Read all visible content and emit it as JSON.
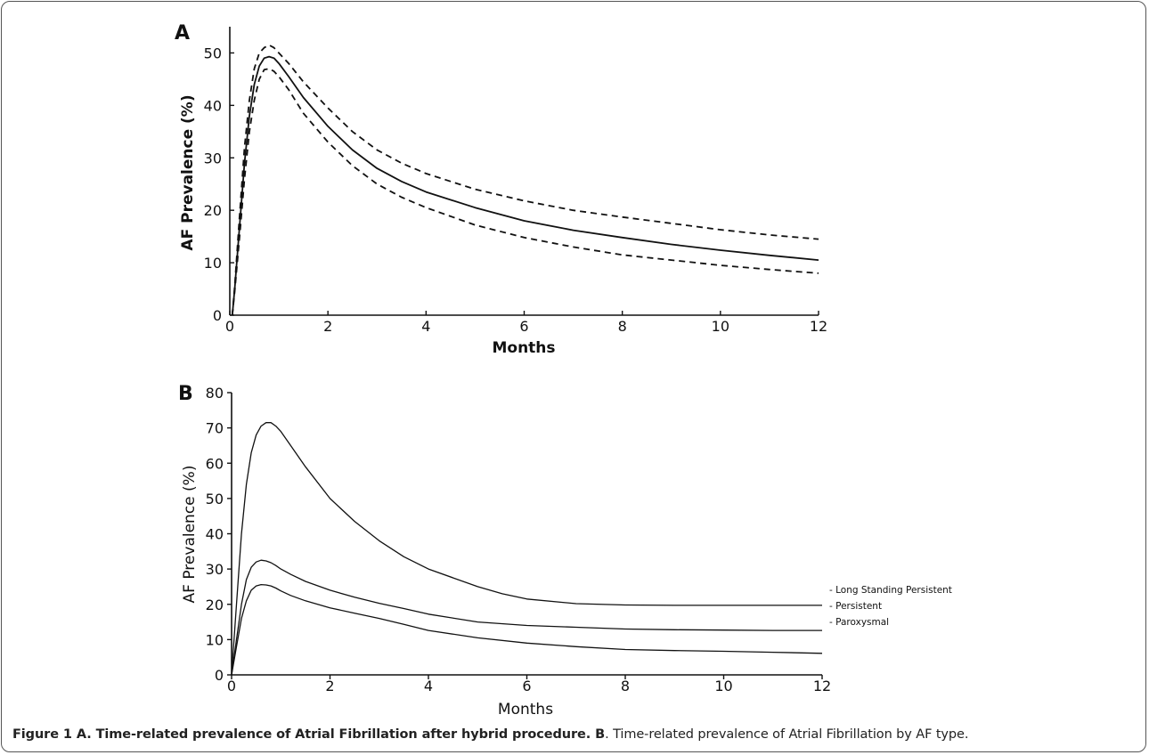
{
  "caption": {
    "part1": "Figure 1 A. Time-related prevalence of Atrial Fibrillation after hybrid procedure. B",
    "part2": ". Time-related prevalence of Atrial Fibrillation by AF type."
  },
  "chart_data": [
    {
      "type": "line",
      "panel_label": "A",
      "xlabel": "Months",
      "ylabel": "AF Prevalence (%)",
      "xlim": [
        0,
        12
      ],
      "ylim": [
        0,
        55
      ],
      "xticks": [
        0,
        2,
        4,
        6,
        8,
        10,
        12
      ],
      "yticks": [
        0,
        10,
        20,
        30,
        40,
        50
      ],
      "series": [
        {
          "style": "solid",
          "x": [
            0.05,
            0.1,
            0.2,
            0.3,
            0.4,
            0.5,
            0.6,
            0.7,
            0.8,
            0.9,
            1.0,
            1.2,
            1.5,
            2,
            2.5,
            3,
            3.5,
            4,
            5,
            6,
            7,
            8,
            9,
            10,
            11,
            12
          ],
          "y": [
            0,
            5,
            17,
            29,
            38,
            44,
            47.5,
            49,
            49.3,
            49,
            48,
            45.5,
            41.5,
            36,
            31.5,
            28,
            25.5,
            23.5,
            20.5,
            18,
            16.2,
            14.8,
            13.5,
            12.4,
            11.4,
            10.5
          ]
        },
        {
          "style": "dashed",
          "x": [
            0.05,
            0.1,
            0.2,
            0.3,
            0.4,
            0.5,
            0.6,
            0.7,
            0.8,
            0.9,
            1.0,
            1.2,
            1.5,
            2,
            2.5,
            3,
            3.5,
            4,
            5,
            6,
            7,
            8,
            9,
            10,
            11,
            12
          ],
          "y": [
            0,
            5.5,
            19,
            32,
            41,
            47,
            50,
            51,
            51.5,
            51,
            50,
            48,
            44.5,
            39.5,
            35,
            31.5,
            29,
            27,
            24,
            21.8,
            20,
            18.7,
            17.5,
            16.3,
            15.3,
            14.5
          ]
        },
        {
          "style": "dashed",
          "x": [
            0.05,
            0.1,
            0.2,
            0.3,
            0.4,
            0.5,
            0.6,
            0.7,
            0.8,
            0.9,
            1.0,
            1.2,
            1.5,
            2,
            2.5,
            3,
            3.5,
            4,
            5,
            6,
            7,
            8,
            9,
            10,
            11,
            12
          ],
          "y": [
            0,
            4.5,
            15,
            26,
            35,
            41,
            45,
            46.8,
            47,
            46.5,
            45.5,
            43,
            38.5,
            33,
            28.5,
            25,
            22.5,
            20.5,
            17.2,
            14.8,
            13,
            11.5,
            10.5,
            9.5,
            8.7,
            8
          ]
        }
      ]
    },
    {
      "type": "line",
      "panel_label": "B",
      "xlabel": "Months",
      "ylabel": "AF Prevalence (%)",
      "xlim": [
        0,
        12
      ],
      "ylim": [
        0,
        80
      ],
      "xticks": [
        0,
        2,
        4,
        6,
        8,
        10,
        12
      ],
      "yticks": [
        0,
        10,
        20,
        30,
        40,
        50,
        60,
        70,
        80
      ],
      "series": [
        {
          "name": "Long Standing Persistent",
          "x": [
            0,
            0.1,
            0.2,
            0.3,
            0.4,
            0.5,
            0.6,
            0.7,
            0.8,
            0.9,
            1.0,
            1.2,
            1.5,
            2,
            2.5,
            3,
            3.5,
            4,
            5,
            5.5,
            6,
            7,
            8,
            9,
            10,
            11,
            12
          ],
          "y": [
            0,
            20,
            40,
            54,
            63,
            68,
            70.5,
            71.5,
            71.5,
            70.5,
            69,
            65,
            59,
            50,
            43.5,
            38,
            33.5,
            30,
            25,
            23,
            21.5,
            20.2,
            19.8,
            19.7,
            19.7,
            19.7,
            19.7
          ]
        },
        {
          "name": "Persistent",
          "x": [
            0,
            0.1,
            0.2,
            0.3,
            0.4,
            0.5,
            0.6,
            0.7,
            0.8,
            0.9,
            1.0,
            1.2,
            1.5,
            2,
            2.5,
            3,
            3.5,
            4,
            5,
            6,
            7,
            8,
            9,
            10,
            11,
            12
          ],
          "y": [
            0,
            10,
            20,
            27,
            30.5,
            32,
            32.5,
            32.3,
            31.8,
            31,
            30,
            28.5,
            26.5,
            24,
            22,
            20.3,
            18.8,
            17.2,
            15,
            14,
            13.5,
            13,
            12.8,
            12.7,
            12.6,
            12.6
          ]
        },
        {
          "name": "Paroxysmal",
          "x": [
            0,
            0.1,
            0.2,
            0.3,
            0.4,
            0.5,
            0.6,
            0.7,
            0.8,
            0.9,
            1.0,
            1.2,
            1.5,
            2,
            2.5,
            3,
            3.5,
            4,
            5,
            6,
            7,
            8,
            9,
            10,
            11,
            12
          ],
          "y": [
            0,
            8,
            16,
            21,
            24,
            25.2,
            25.6,
            25.5,
            25.2,
            24.6,
            23.8,
            22.5,
            21,
            19,
            17.5,
            16,
            14.3,
            12.6,
            10.5,
            9,
            8,
            7.2,
            6.9,
            6.7,
            6.4,
            6.1
          ]
        }
      ]
    }
  ]
}
